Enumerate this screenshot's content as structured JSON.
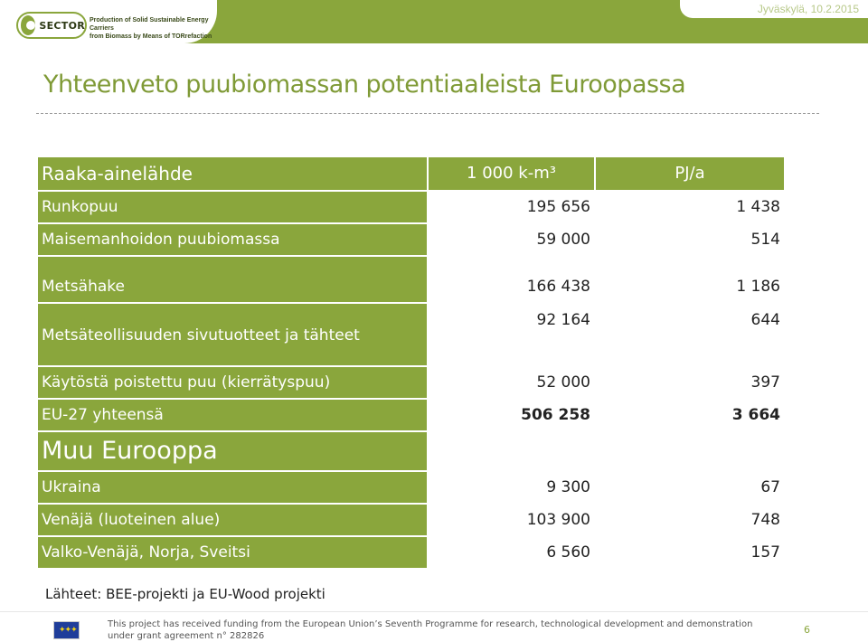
{
  "header": {
    "logo_text": "SECTOR",
    "tagline_line1": "Production of Solid Sustainable Energy Carriers",
    "tagline_line2": "from Biomass by Means of TORrefaction",
    "date": "Jyväskylä, 10.2.2015"
  },
  "slide": {
    "title": "Yhteenveto puubiomassan potentiaaleista Euroopassa"
  },
  "table": {
    "headers": {
      "source": "Raaka-ainelähde",
      "volume": "1 000 k-m³",
      "energy": "PJ/a"
    },
    "rows": [
      {
        "label": "Runkopuu",
        "volume": "195 656",
        "energy": "1 438"
      },
      {
        "label": "Maisemanhoidon puubiomassa",
        "volume": "59 000",
        "energy": "514"
      },
      {
        "label": "Metsähake",
        "volume": "166 438",
        "energy": "1 186"
      },
      {
        "label": "Metsäteollisuuden sivutuotteet ja tähteet",
        "volume": "92 164",
        "energy": "644"
      },
      {
        "label": "Käytöstä poistettu puu (kierrätyspuu)",
        "volume": "52 000",
        "energy": "397"
      },
      {
        "label": "EU-27 yhteensä",
        "volume": "506 258",
        "energy": "3 664"
      }
    ],
    "section_label": "Muu Eurooppa",
    "other_rows": [
      {
        "label": "Ukraina",
        "volume": "9 300",
        "energy": "67"
      },
      {
        "label": "Venäjä (luoteinen alue)",
        "volume": "103 900",
        "energy": "748"
      },
      {
        "label": "Valko-Venäjä, Norja, Sveitsi",
        "volume": "6 560",
        "energy": "157"
      }
    ]
  },
  "sources": "Lähteet: BEE-projekti ja EU-Wood projekti",
  "footer": {
    "funding_line1": "This project has received funding from the European Union’s Seventh Programme for research, technological development and demonstration",
    "funding_line2": "under grant agreement n° 282826",
    "page_number": "6"
  },
  "colors": {
    "accent_green": "#8aa63c",
    "title_green": "#7f9a36"
  }
}
